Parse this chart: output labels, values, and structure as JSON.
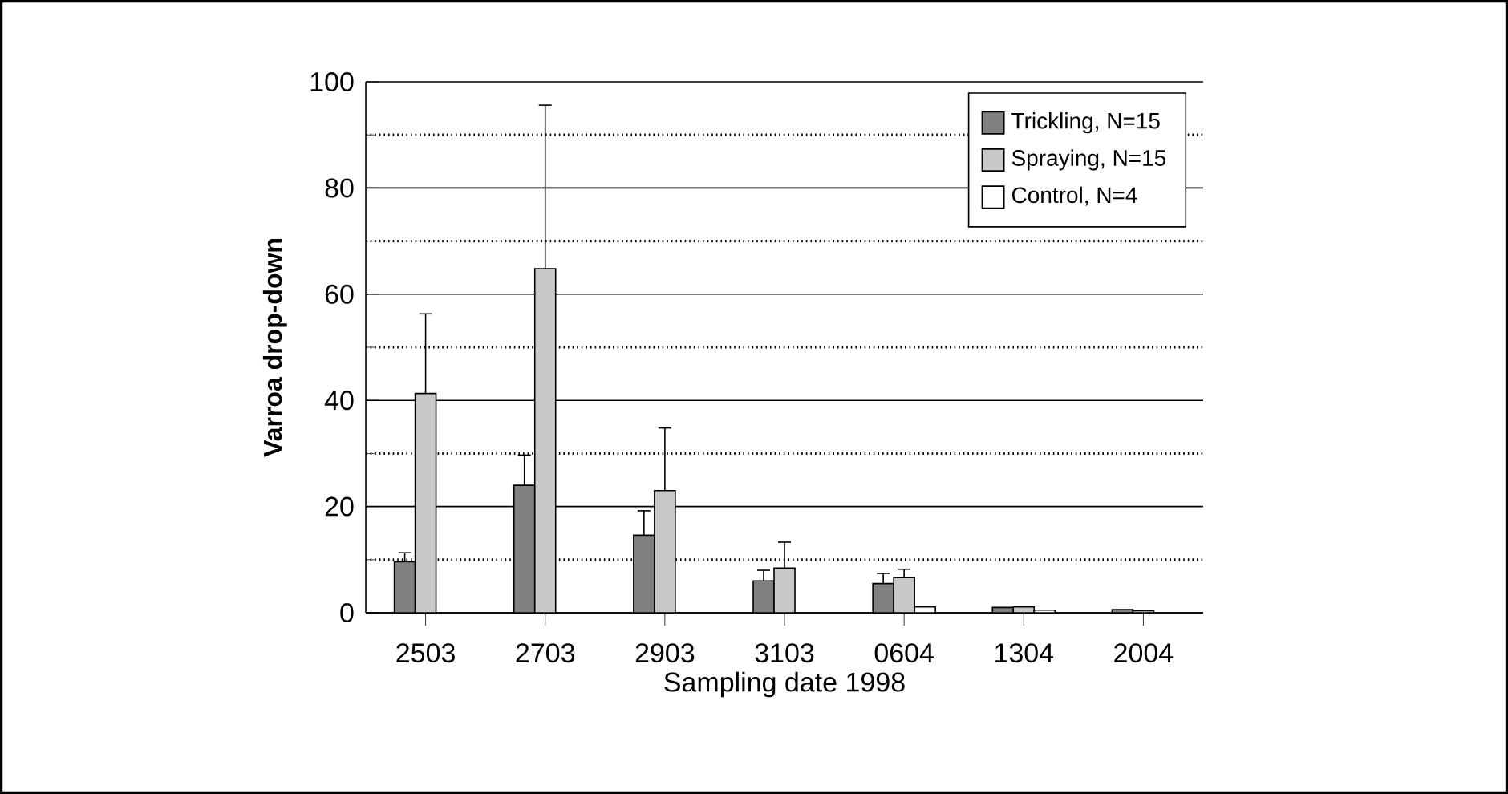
{
  "chart_data": {
    "type": "bar",
    "xlabel": "Sampling date 1998",
    "ylabel": "Varroa drop-down",
    "categories": [
      "2503",
      "2703",
      "2903",
      "3103",
      "0604",
      "1304",
      "2004"
    ],
    "series": [
      {
        "name": "Trickling, N=15",
        "color": "#808080",
        "values": [
          9.6,
          24,
          14.6,
          6.0,
          5.5,
          1.0,
          0.6
        ],
        "errors": [
          1.7,
          5.7,
          4.6,
          2,
          1.9,
          null,
          null
        ]
      },
      {
        "name": "Spraying, N=15",
        "color": "#c8c8c8",
        "values": [
          41.3,
          64.8,
          23,
          8.4,
          6.6,
          1.1,
          0.4
        ],
        "errors": [
          15,
          30.8,
          11.8,
          4.9,
          1.6,
          null,
          null
        ]
      },
      {
        "name": "Control, N=4",
        "color": "#ffffff",
        "values": [
          null,
          null,
          null,
          null,
          1.1,
          0.5,
          null
        ],
        "errors": [
          null,
          null,
          null,
          null,
          null,
          null,
          null
        ]
      }
    ],
    "ylim": [
      0,
      100
    ],
    "yticks": [
      0,
      20,
      40,
      60,
      80,
      100
    ],
    "grid": "y",
    "legend": "top right"
  }
}
